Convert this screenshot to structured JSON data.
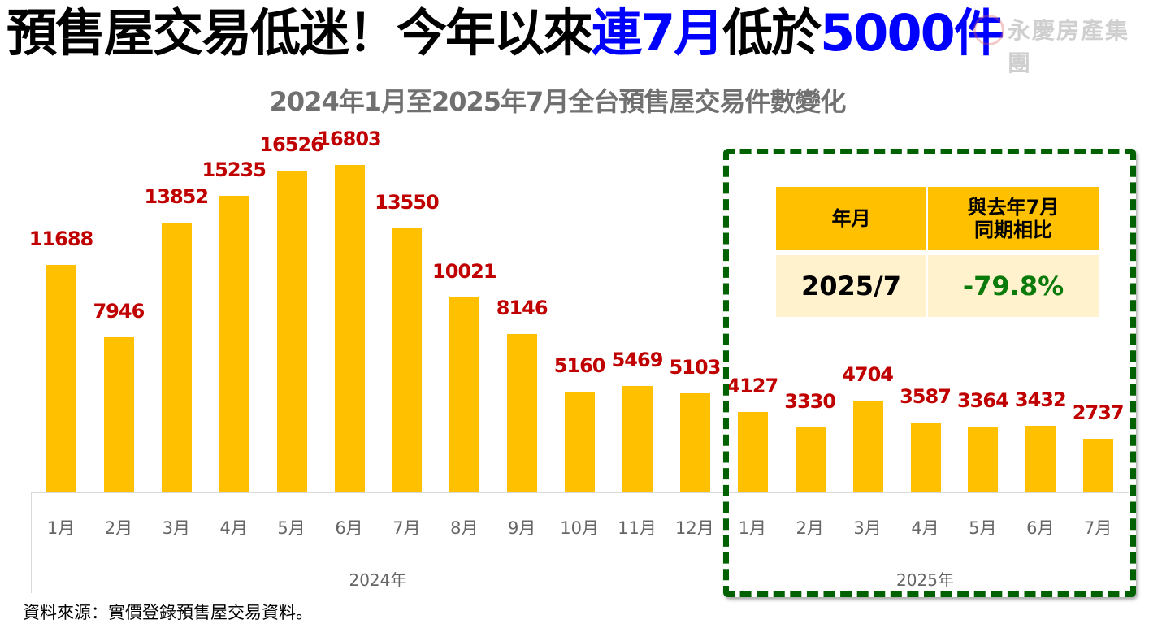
{
  "headline": {
    "part1": "預售屋交易低迷！今年以來",
    "part2_highlight": "連7月",
    "part3": "低於",
    "part4_highlight": "5000件",
    "highlight_color": "#0000ff"
  },
  "watermark": {
    "text": "永慶房產集團"
  },
  "chart_data": {
    "type": "bar",
    "title": "2024年1月至2025年7月全台預售屋交易件數變化",
    "xlabel": "",
    "ylabel": "",
    "categories": [
      "2024年1月",
      "2024年2月",
      "2024年3月",
      "2024年4月",
      "2024年5月",
      "2024年6月",
      "2024年7月",
      "2024年8月",
      "2024年9月",
      "2024年10月",
      "2024年11月",
      "2024年12月",
      "2025年1月",
      "2025年2月",
      "2025年3月",
      "2025年4月",
      "2025年5月",
      "2025年6月",
      "2025年7月"
    ],
    "tick_labels": [
      "1月",
      "2月",
      "3月",
      "4月",
      "5月",
      "6月",
      "7月",
      "8月",
      "9月",
      "10月",
      "11月",
      "12月",
      "1月",
      "2月",
      "3月",
      "4月",
      "5月",
      "6月",
      "7月"
    ],
    "groups": [
      {
        "label": "2024年",
        "start": 0,
        "end": 11
      },
      {
        "label": "2025年",
        "start": 12,
        "end": 18
      }
    ],
    "values": [
      11688,
      7946,
      13852,
      15235,
      16526,
      16803,
      13550,
      10021,
      8146,
      5160,
      5469,
      5103,
      4127,
      3330,
      4704,
      3587,
      3364,
      3432,
      2737
    ],
    "bar_color": "#ffc000",
    "label_color": "#c00000",
    "ylim": [
      0,
      18000
    ],
    "grid": false,
    "legend": null
  },
  "callout": {
    "border_color": "#006100",
    "header": [
      "年月",
      "與去年7月\n同期相比"
    ],
    "row": [
      "2025/7",
      "-79.8%"
    ],
    "change_color": "#0a7a0a"
  },
  "source_note": "資料來源：實價登錄預售屋交易資料。"
}
